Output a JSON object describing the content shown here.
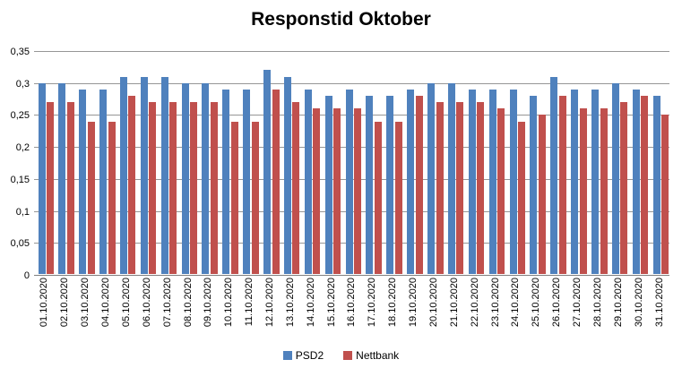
{
  "chart_data": {
    "type": "bar",
    "title": "Responstid Oktober",
    "categories": [
      "01.10.2020",
      "02.10.2020",
      "03.10.2020",
      "04.10.2020",
      "05.10.2020",
      "06.10.2020",
      "07.10.2020",
      "08.10.2020",
      "09.10.2020",
      "10.10.2020",
      "11.10.2020",
      "12.10.2020",
      "13.10.2020",
      "14.10.2020",
      "15.10.2020",
      "16.10.2020",
      "17.10.2020",
      "18.10.2020",
      "19.10.2020",
      "20.10.2020",
      "21.10.2020",
      "22.10.2020",
      "23.10.2020",
      "24.10.2020",
      "25.10.2020",
      "26.10.2020",
      "27.10.2020",
      "28.10.2020",
      "29.10.2020",
      "30.10.2020",
      "31.10.2020"
    ],
    "series": [
      {
        "name": "PSD2",
        "color": "#4F81BD",
        "values": [
          0.3,
          0.3,
          0.29,
          0.29,
          0.31,
          0.31,
          0.31,
          0.3,
          0.3,
          0.29,
          0.29,
          0.32,
          0.31,
          0.29,
          0.28,
          0.29,
          0.28,
          0.28,
          0.29,
          0.3,
          0.3,
          0.29,
          0.29,
          0.29,
          0.28,
          0.31,
          0.29,
          0.29,
          0.3,
          0.29,
          0.28
        ]
      },
      {
        "name": "Nettbank",
        "color": "#C0504D",
        "values": [
          0.27,
          0.27,
          0.24,
          0.24,
          0.28,
          0.27,
          0.27,
          0.27,
          0.27,
          0.24,
          0.24,
          0.29,
          0.27,
          0.26,
          0.26,
          0.26,
          0.24,
          0.24,
          0.28,
          0.27,
          0.27,
          0.27,
          0.26,
          0.24,
          0.25,
          0.28,
          0.26,
          0.26,
          0.27,
          0.28,
          0.25
        ]
      }
    ],
    "xlabel": "",
    "ylabel": "",
    "ylim": [
      0,
      0.35
    ],
    "y_tick_step": 0.05,
    "y_tick_labels": [
      "0,35",
      "0,3",
      "0,25",
      "0,2",
      "0,15",
      "0,1",
      "0,05",
      "0"
    ],
    "grid": true,
    "legend_position": "bottom",
    "decimal_separator": ","
  },
  "colors": {
    "gridline": "#969696",
    "axis": "#808080",
    "background": "#ffffff",
    "text": "#000000"
  }
}
